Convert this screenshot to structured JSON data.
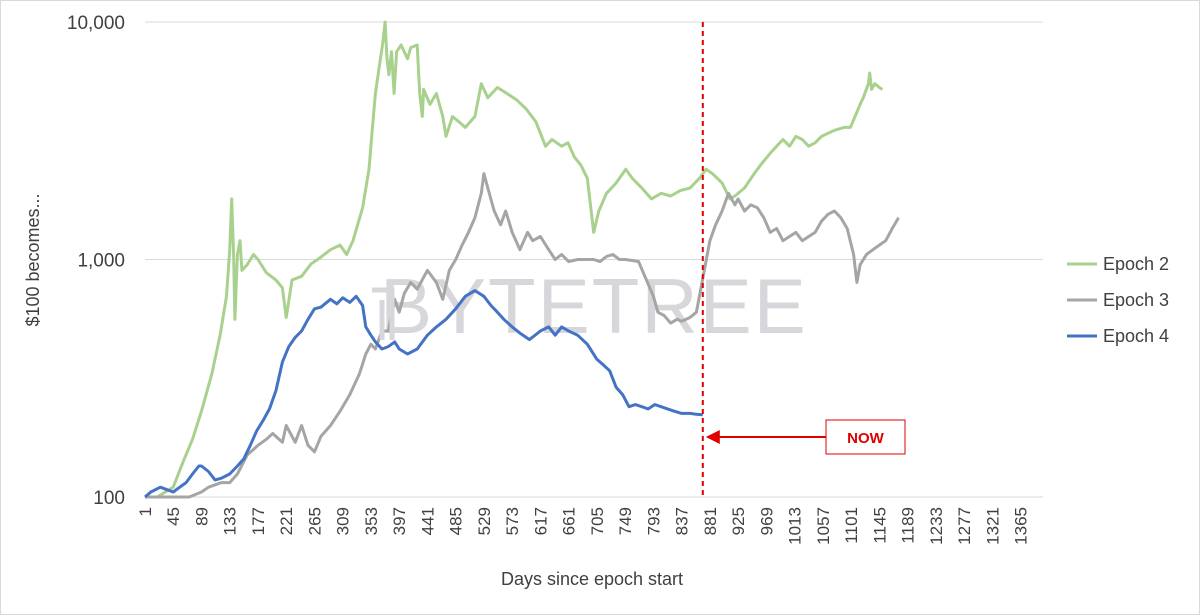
{
  "chart_data": {
    "type": "line",
    "title": "",
    "xlabel": "Days since epoch start",
    "ylabel": "$100 becomes...",
    "yscale": "log",
    "ylim": [
      100,
      10000
    ],
    "y_ticks": [
      100,
      1000,
      10000
    ],
    "y_tick_labels": [
      "100",
      "1,000",
      "10,000"
    ],
    "xlim": [
      1,
      1400
    ],
    "x_ticks": [
      1,
      45,
      89,
      133,
      177,
      221,
      265,
      309,
      353,
      397,
      441,
      485,
      529,
      573,
      617,
      661,
      705,
      749,
      793,
      837,
      881,
      925,
      969,
      1013,
      1057,
      1101,
      1145,
      1189,
      1233,
      1277,
      1321,
      1365
    ],
    "grid": "horizontal",
    "legend_position": "right",
    "colors": {
      "epoch2": "#a9d18e",
      "epoch3": "#a5a5a5",
      "epoch4": "#4472c4",
      "now": "#e00000",
      "grid": "#d9d9d9"
    },
    "series": [
      {
        "name": "Epoch 2",
        "color": "#a9d18e",
        "points": [
          [
            1,
            100
          ],
          [
            20,
            100
          ],
          [
            45,
            110
          ],
          [
            60,
            140
          ],
          [
            75,
            175
          ],
          [
            89,
            230
          ],
          [
            105,
            330
          ],
          [
            118,
            480
          ],
          [
            128,
            700
          ],
          [
            133,
            1100
          ],
          [
            136,
            1800
          ],
          [
            139,
            1050
          ],
          [
            141,
            560
          ],
          [
            145,
            1050
          ],
          [
            149,
            1200
          ],
          [
            152,
            900
          ],
          [
            160,
            950
          ],
          [
            170,
            1050
          ],
          [
            177,
            1000
          ],
          [
            190,
            880
          ],
          [
            205,
            820
          ],
          [
            215,
            760
          ],
          [
            221,
            570
          ],
          [
            230,
            820
          ],
          [
            245,
            850
          ],
          [
            260,
            960
          ],
          [
            270,
            1000
          ],
          [
            290,
            1100
          ],
          [
            305,
            1150
          ],
          [
            315,
            1050
          ],
          [
            325,
            1200
          ],
          [
            340,
            1650
          ],
          [
            350,
            2400
          ],
          [
            355,
            3500
          ],
          [
            360,
            5000
          ],
          [
            366,
            6500
          ],
          [
            371,
            8000
          ],
          [
            375,
            10000
          ],
          [
            378,
            7000
          ],
          [
            381,
            6000
          ],
          [
            385,
            7500
          ],
          [
            389,
            5000
          ],
          [
            393,
            7500
          ],
          [
            400,
            8000
          ],
          [
            410,
            7000
          ],
          [
            415,
            7800
          ],
          [
            425,
            8000
          ],
          [
            429,
            5000
          ],
          [
            433,
            4000
          ],
          [
            435,
            5200
          ],
          [
            445,
            4500
          ],
          [
            455,
            5000
          ],
          [
            465,
            4000
          ],
          [
            470,
            3300
          ],
          [
            480,
            4000
          ],
          [
            490,
            3800
          ],
          [
            500,
            3600
          ],
          [
            515,
            4000
          ],
          [
            525,
            5500
          ],
          [
            535,
            4800
          ],
          [
            550,
            5300
          ],
          [
            565,
            5000
          ],
          [
            580,
            4700
          ],
          [
            595,
            4300
          ],
          [
            610,
            3800
          ],
          [
            625,
            3000
          ],
          [
            635,
            3200
          ],
          [
            650,
            3000
          ],
          [
            660,
            3100
          ],
          [
            670,
            2700
          ],
          [
            680,
            2500
          ],
          [
            690,
            2200
          ],
          [
            700,
            1300
          ],
          [
            708,
            1600
          ],
          [
            720,
            1900
          ],
          [
            735,
            2100
          ],
          [
            750,
            2400
          ],
          [
            760,
            2200
          ],
          [
            775,
            2000
          ],
          [
            790,
            1800
          ],
          [
            805,
            1900
          ],
          [
            820,
            1850
          ],
          [
            835,
            1950
          ],
          [
            850,
            2000
          ],
          [
            865,
            2200
          ],
          [
            875,
            2400
          ],
          [
            885,
            2300
          ],
          [
            900,
            2100
          ],
          [
            912,
            1800
          ],
          [
            920,
            1850
          ],
          [
            935,
            2000
          ],
          [
            950,
            2300
          ],
          [
            960,
            2500
          ],
          [
            975,
            2800
          ],
          [
            985,
            3000
          ],
          [
            995,
            3200
          ],
          [
            1005,
            3000
          ],
          [
            1015,
            3300
          ],
          [
            1025,
            3200
          ],
          [
            1035,
            3000
          ],
          [
            1045,
            3100
          ],
          [
            1055,
            3300
          ],
          [
            1065,
            3400
          ],
          [
            1075,
            3500
          ],
          [
            1090,
            3600
          ],
          [
            1100,
            3600
          ],
          [
            1115,
            4500
          ],
          [
            1120,
            4800
          ],
          [
            1128,
            5500
          ],
          [
            1130,
            6100
          ],
          [
            1133,
            5200
          ],
          [
            1138,
            5500
          ],
          [
            1145,
            5300
          ],
          [
            1150,
            5200
          ]
        ]
      },
      {
        "name": "Epoch 3",
        "color": "#a5a5a5",
        "points": [
          [
            1,
            100
          ],
          [
            45,
            100
          ],
          [
            70,
            100
          ],
          [
            89,
            105
          ],
          [
            100,
            110
          ],
          [
            120,
            115
          ],
          [
            133,
            115
          ],
          [
            145,
            125
          ],
          [
            160,
            150
          ],
          [
            177,
            165
          ],
          [
            190,
            175
          ],
          [
            200,
            185
          ],
          [
            215,
            170
          ],
          [
            221,
            200
          ],
          [
            235,
            170
          ],
          [
            245,
            200
          ],
          [
            255,
            165
          ],
          [
            265,
            155
          ],
          [
            275,
            180
          ],
          [
            290,
            200
          ],
          [
            305,
            230
          ],
          [
            320,
            270
          ],
          [
            335,
            330
          ],
          [
            345,
            400
          ],
          [
            353,
            440
          ],
          [
            360,
            420
          ],
          [
            370,
            500
          ],
          [
            380,
            500
          ],
          [
            390,
            680
          ],
          [
            397,
            600
          ],
          [
            405,
            720
          ],
          [
            415,
            800
          ],
          [
            425,
            750
          ],
          [
            441,
            900
          ],
          [
            455,
            800
          ],
          [
            465,
            680
          ],
          [
            475,
            900
          ],
          [
            485,
            1000
          ],
          [
            495,
            1150
          ],
          [
            505,
            1300
          ],
          [
            515,
            1500
          ],
          [
            525,
            1900
          ],
          [
            529,
            2300
          ],
          [
            535,
            2000
          ],
          [
            545,
            1600
          ],
          [
            555,
            1400
          ],
          [
            563,
            1600
          ],
          [
            573,
            1300
          ],
          [
            585,
            1100
          ],
          [
            597,
            1300
          ],
          [
            605,
            1200
          ],
          [
            617,
            1250
          ],
          [
            630,
            1100
          ],
          [
            640,
            1000
          ],
          [
            650,
            1050
          ],
          [
            661,
            980
          ],
          [
            675,
            1000
          ],
          [
            690,
            1000
          ],
          [
            700,
            1000
          ],
          [
            710,
            980
          ],
          [
            720,
            1030
          ],
          [
            730,
            1050
          ],
          [
            740,
            1000
          ],
          [
            749,
            1000
          ],
          [
            760,
            990
          ],
          [
            770,
            980
          ],
          [
            793,
            700
          ],
          [
            800,
            600
          ],
          [
            810,
            580
          ],
          [
            820,
            540
          ],
          [
            830,
            560
          ],
          [
            837,
            550
          ],
          [
            850,
            570
          ],
          [
            860,
            600
          ],
          [
            881,
            1200
          ],
          [
            890,
            1400
          ],
          [
            900,
            1600
          ],
          [
            910,
            1900
          ],
          [
            920,
            1700
          ],
          [
            925,
            1800
          ],
          [
            935,
            1600
          ],
          [
            945,
            1700
          ],
          [
            955,
            1650
          ],
          [
            965,
            1500
          ],
          [
            975,
            1300
          ],
          [
            985,
            1350
          ],
          [
            995,
            1200
          ],
          [
            1005,
            1250
          ],
          [
            1015,
            1300
          ],
          [
            1025,
            1200
          ],
          [
            1035,
            1250
          ],
          [
            1045,
            1300
          ],
          [
            1055,
            1450
          ],
          [
            1065,
            1550
          ],
          [
            1075,
            1600
          ],
          [
            1085,
            1500
          ],
          [
            1095,
            1350
          ],
          [
            1105,
            1050
          ],
          [
            1110,
            800
          ],
          [
            1115,
            950
          ],
          [
            1125,
            1050
          ],
          [
            1135,
            1100
          ],
          [
            1145,
            1150
          ],
          [
            1155,
            1200
          ],
          [
            1165,
            1350
          ],
          [
            1175,
            1500
          ]
        ]
      },
      {
        "name": "Epoch 4",
        "color": "#4472c4",
        "points": [
          [
            1,
            100
          ],
          [
            10,
            105
          ],
          [
            25,
            110
          ],
          [
            45,
            105
          ],
          [
            55,
            110
          ],
          [
            65,
            115
          ],
          [
            75,
            125
          ],
          [
            85,
            135
          ],
          [
            89,
            135
          ],
          [
            100,
            128
          ],
          [
            110,
            118
          ],
          [
            120,
            120
          ],
          [
            133,
            125
          ],
          [
            145,
            135
          ],
          [
            155,
            145
          ],
          [
            165,
            165
          ],
          [
            175,
            190
          ],
          [
            185,
            210
          ],
          [
            195,
            235
          ],
          [
            205,
            280
          ],
          [
            215,
            370
          ],
          [
            225,
            430
          ],
          [
            235,
            470
          ],
          [
            245,
            500
          ],
          [
            255,
            560
          ],
          [
            265,
            620
          ],
          [
            275,
            630
          ],
          [
            290,
            680
          ],
          [
            300,
            650
          ],
          [
            309,
            690
          ],
          [
            320,
            660
          ],
          [
            330,
            700
          ],
          [
            340,
            640
          ],
          [
            345,
            520
          ],
          [
            353,
            480
          ],
          [
            360,
            450
          ],
          [
            370,
            420
          ],
          [
            380,
            430
          ],
          [
            390,
            450
          ],
          [
            397,
            420
          ],
          [
            410,
            400
          ],
          [
            425,
            420
          ],
          [
            441,
            480
          ],
          [
            455,
            520
          ],
          [
            470,
            560
          ],
          [
            485,
            620
          ],
          [
            500,
            700
          ],
          [
            515,
            740
          ],
          [
            529,
            700
          ],
          [
            540,
            640
          ],
          [
            550,
            600
          ],
          [
            560,
            560
          ],
          [
            573,
            520
          ],
          [
            585,
            490
          ],
          [
            600,
            460
          ],
          [
            617,
            500
          ],
          [
            630,
            520
          ],
          [
            640,
            480
          ],
          [
            650,
            520
          ],
          [
            661,
            500
          ],
          [
            675,
            480
          ],
          [
            690,
            440
          ],
          [
            705,
            380
          ],
          [
            715,
            360
          ],
          [
            725,
            340
          ],
          [
            735,
            290
          ],
          [
            745,
            270
          ],
          [
            755,
            240
          ],
          [
            765,
            245
          ],
          [
            775,
            240
          ],
          [
            785,
            235
          ],
          [
            795,
            245
          ],
          [
            805,
            240
          ],
          [
            815,
            235
          ],
          [
            825,
            230
          ],
          [
            837,
            225
          ],
          [
            850,
            225
          ],
          [
            860,
            223
          ],
          [
            870,
            222
          ]
        ]
      }
    ],
    "annotations": [
      {
        "type": "vline",
        "x": 870,
        "style": "dashed",
        "color": "#e00000"
      },
      {
        "type": "label",
        "text": "NOW",
        "arrow_to_x": 870
      }
    ]
  },
  "watermark": "BYTETREE"
}
